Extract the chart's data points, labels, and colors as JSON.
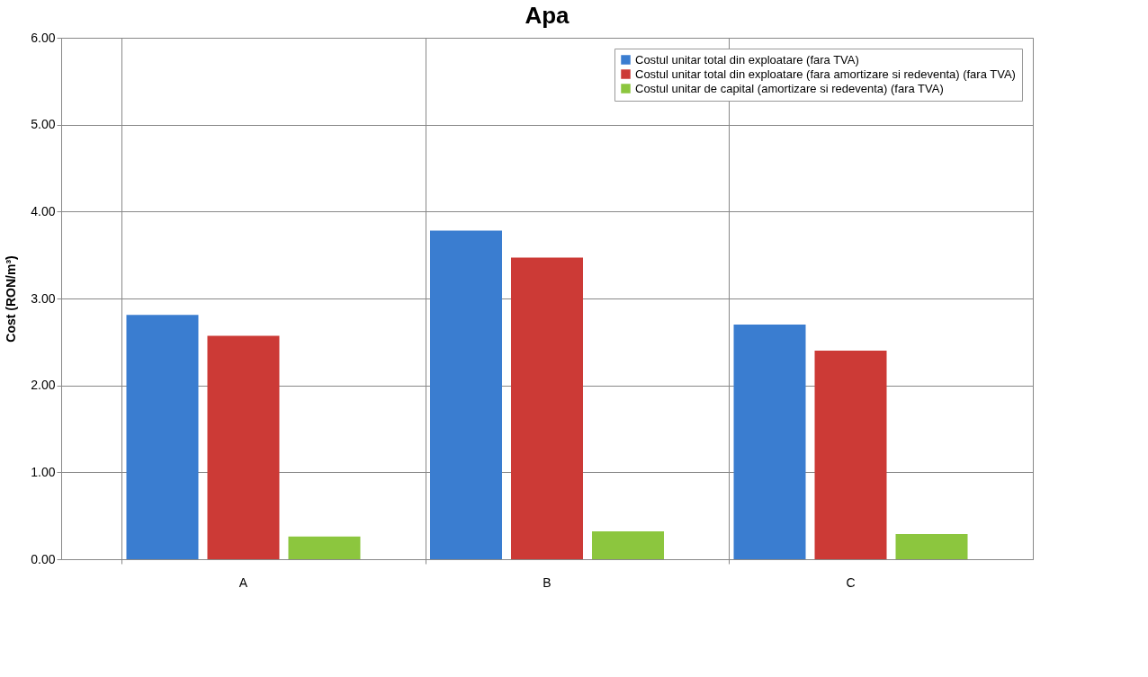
{
  "chart_data": {
    "type": "bar",
    "title": "Apa",
    "ylabel": "Cost (RON/m³)",
    "categories": [
      "A",
      "B",
      "C"
    ],
    "series": [
      {
        "name": "Costul unitar total din exploatare (fara TVA)",
        "color": "#3a7dd0",
        "values": [
          2.81,
          3.78,
          2.7
        ]
      },
      {
        "name": "Costul unitar total din exploatare (fara amortizare si redeventa) (fara TVA)",
        "color": "#cc3a36",
        "values": [
          2.57,
          3.47,
          2.4
        ]
      },
      {
        "name": "Costul unitar de capital (amortizare si redeventa) (fara TVA)",
        "color": "#8cc63e",
        "values": [
          0.26,
          0.32,
          0.29
        ]
      }
    ],
    "ylim": [
      0,
      6
    ],
    "yticks": [
      {
        "value": 0,
        "label": "0.00"
      },
      {
        "value": 1,
        "label": "1.00"
      },
      {
        "value": 2,
        "label": "2.00"
      },
      {
        "value": 3,
        "label": "3.00"
      },
      {
        "value": 4,
        "label": "4.00"
      },
      {
        "value": 5,
        "label": "5.00"
      },
      {
        "value": 6,
        "label": "6.00"
      }
    ],
    "grid": true,
    "legend": "top right"
  }
}
